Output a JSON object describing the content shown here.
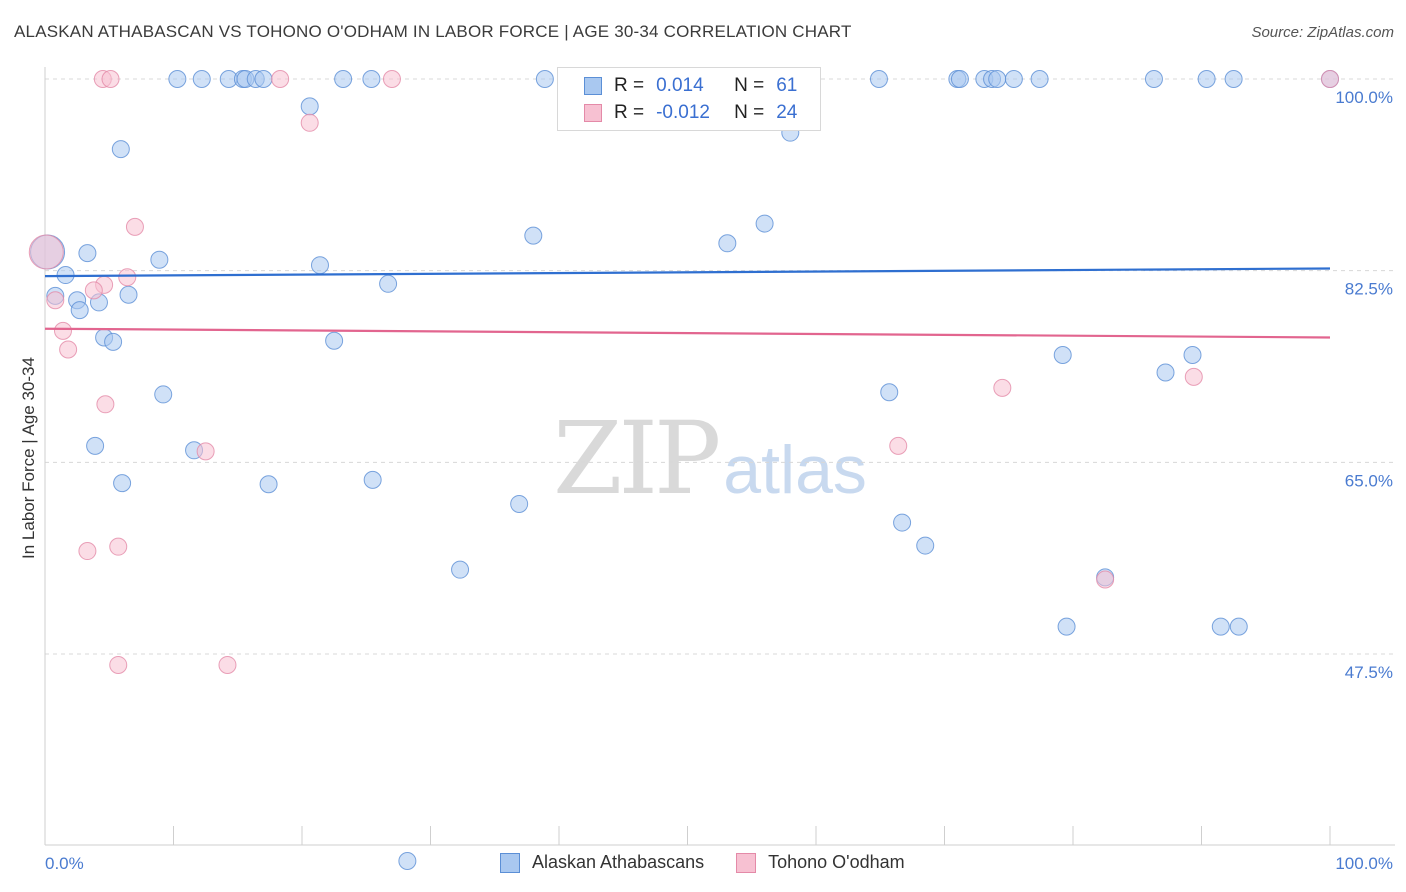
{
  "header": {
    "title": "ALASKAN ATHABASCAN VS TOHONO O'ODHAM IN LABOR FORCE | AGE 30-34 CORRELATION CHART",
    "source": "Source: ZipAtlas.com"
  },
  "watermark": {
    "zip": "ZIP",
    "atlas": "atlas"
  },
  "legend_top": {
    "rows": [
      {
        "r_label": "R =",
        "r_value": "0.014",
        "n_label": "N =",
        "n_value": "61"
      },
      {
        "r_label": "R =",
        "r_value": "-0.012",
        "n_label": "N =",
        "n_value": "24"
      }
    ]
  },
  "chart_data": {
    "type": "scatter",
    "title": "ALASKAN ATHABASCAN VS TOHONO O'ODHAM IN LABOR FORCE | AGE 30-34 CORRELATION CHART",
    "xlabel": "",
    "ylabel": "In Labor Force | Age 30-34",
    "xlim": [
      0,
      100
    ],
    "ylim": [
      30,
      101.5
    ],
    "x_tick_labels": [
      "0.0%",
      "100.0%"
    ],
    "y_ticks": [
      47.5,
      65.0,
      82.5,
      100.0
    ],
    "y_tick_labels": [
      "47.5%",
      "65.0%",
      "82.5%",
      "100.0%"
    ],
    "colors": {
      "series1_fill": "#a9c8f0",
      "series1_stroke": "#5b8fd6",
      "series1_line": "#2f6fd0",
      "series2_fill": "#f7c1d2",
      "series2_stroke": "#e48aa8",
      "series2_line": "#e2658f",
      "tick_label": "#4a7bd0",
      "grid": "#d8d8d8"
    },
    "series": [
      {
        "name": "Alaskan Athabascans",
        "trend": [
          [
            0,
            82.0
          ],
          [
            100,
            82.7
          ]
        ],
        "points": [
          [
            0.2,
            84.2
          ],
          [
            1.6,
            82.1
          ],
          [
            0.8,
            80.2
          ],
          [
            2.5,
            79.8
          ],
          [
            4.2,
            79.6
          ],
          [
            6.5,
            80.3
          ],
          [
            2.7,
            78.9
          ],
          [
            4.6,
            76.4
          ],
          [
            5.3,
            76.0
          ],
          [
            3.3,
            84.1
          ],
          [
            8.9,
            83.5
          ],
          [
            21.4,
            83.0
          ],
          [
            26.7,
            81.3
          ],
          [
            22.5,
            76.1
          ],
          [
            5.9,
            93.6
          ],
          [
            20.6,
            97.5
          ],
          [
            10.3,
            100
          ],
          [
            12.2,
            100
          ],
          [
            14.3,
            100
          ],
          [
            15.4,
            100
          ],
          [
            15.6,
            100
          ],
          [
            16.4,
            100
          ],
          [
            17.0,
            100
          ],
          [
            23.2,
            100
          ],
          [
            25.4,
            100
          ],
          [
            38.9,
            100
          ],
          [
            64.9,
            100
          ],
          [
            71.0,
            100
          ],
          [
            71.2,
            100
          ],
          [
            73.1,
            100
          ],
          [
            73.7,
            100
          ],
          [
            74.1,
            100
          ],
          [
            75.4,
            100
          ],
          [
            77.4,
            100
          ],
          [
            86.3,
            100
          ],
          [
            90.4,
            100
          ],
          [
            92.5,
            100
          ],
          [
            100,
            100
          ],
          [
            58.0,
            95.1
          ],
          [
            38.0,
            85.7
          ],
          [
            53.1,
            85.0
          ],
          [
            56.0,
            86.8
          ],
          [
            9.2,
            71.2
          ],
          [
            3.9,
            66.5
          ],
          [
            6.0,
            63.1
          ],
          [
            17.4,
            63.0
          ],
          [
            25.5,
            63.4
          ],
          [
            11.6,
            66.1
          ],
          [
            36.9,
            61.2
          ],
          [
            32.3,
            55.2
          ],
          [
            65.7,
            71.4
          ],
          [
            68.5,
            57.4
          ],
          [
            79.2,
            74.8
          ],
          [
            82.5,
            54.5
          ],
          [
            87.2,
            73.2
          ],
          [
            89.3,
            74.8
          ],
          [
            66.7,
            59.5
          ],
          [
            79.5,
            50.0
          ],
          [
            91.5,
            50.0
          ],
          [
            92.9,
            50.0
          ],
          [
            28.2,
            28.6
          ]
        ]
      },
      {
        "name": "Tohono O'odham",
        "trend": [
          [
            0,
            77.2
          ],
          [
            100,
            76.4
          ]
        ],
        "points": [
          [
            0.1,
            84.2
          ],
          [
            1.4,
            77.0
          ],
          [
            1.8,
            75.3
          ],
          [
            0.8,
            79.8
          ],
          [
            4.6,
            81.2
          ],
          [
            6.4,
            81.9
          ],
          [
            7.0,
            86.5
          ],
          [
            3.8,
            80.7
          ],
          [
            4.5,
            100
          ],
          [
            5.1,
            100
          ],
          [
            18.3,
            100
          ],
          [
            27.0,
            100
          ],
          [
            100,
            100
          ],
          [
            20.6,
            96.0
          ],
          [
            4.7,
            70.3
          ],
          [
            12.5,
            66.0
          ],
          [
            3.3,
            56.9
          ],
          [
            5.7,
            57.3
          ],
          [
            5.7,
            46.5
          ],
          [
            14.2,
            46.5
          ],
          [
            74.5,
            71.8
          ],
          [
            66.4,
            66.5
          ],
          [
            82.5,
            54.3
          ],
          [
            89.4,
            72.8
          ]
        ]
      }
    ]
  },
  "bottom_legend": [
    "Alaskan Athabascans",
    "Tohono O'odham"
  ]
}
